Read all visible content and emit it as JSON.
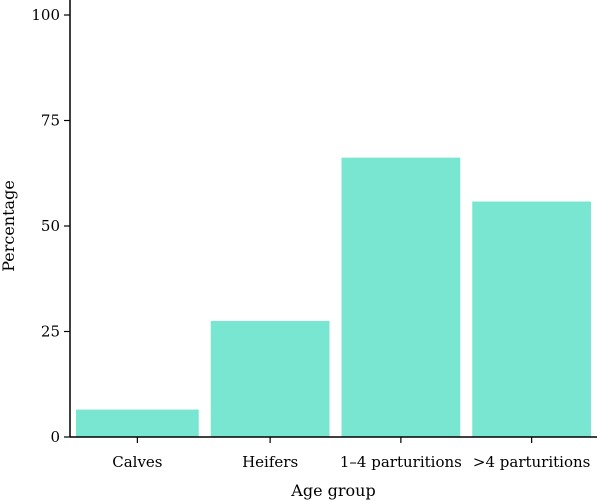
{
  "chart_data": {
    "type": "bar",
    "categories": [
      "Calves",
      "Heifers",
      "1–4 parturitions",
      ">4 parturitions"
    ],
    "values": [
      6.5,
      27.5,
      66.2,
      55.8
    ],
    "xlabel": "Age group",
    "ylabel": "Percentage",
    "ylim": [
      0,
      100
    ],
    "yticks": [
      0,
      25,
      50,
      75,
      100
    ],
    "grid": false,
    "legend": "none",
    "bar_color": "#78E6D0"
  }
}
